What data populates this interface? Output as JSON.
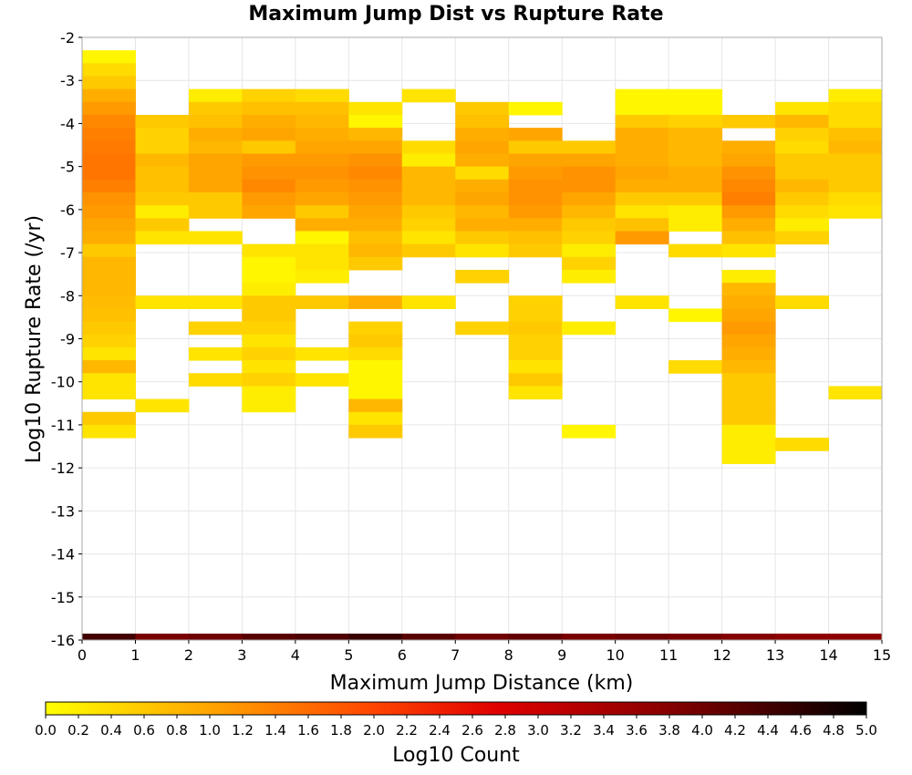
{
  "chart_data": {
    "type": "heatmap",
    "title": "Maximum Jump Dist vs Rupture Rate",
    "xlabel": "Maximum Jump Distance (km)",
    "ylabel": "Log10 Rupture Rate (/yr)",
    "xlim": [
      0,
      15
    ],
    "ylim": [
      -16,
      -2
    ],
    "x_ticks": [
      "0",
      "1",
      "2",
      "3",
      "4",
      "5",
      "6",
      "7",
      "8",
      "9",
      "10",
      "11",
      "12",
      "13",
      "14",
      "15"
    ],
    "y_ticks": [
      "-2",
      "-3",
      "-4",
      "-5",
      "-6",
      "-7",
      "-8",
      "-9",
      "-10",
      "-11",
      "-12",
      "-13",
      "-14",
      "-15",
      "-16"
    ],
    "bin_width_x": 1,
    "bin_height_y": 0.3,
    "colorbar": {
      "label": "Log10 Count",
      "min": 0.0,
      "max": 5.0,
      "ticks": [
        "0.0",
        "0.2",
        "0.4",
        "0.6",
        "0.8",
        "1.0",
        "1.2",
        "1.4",
        "1.6",
        "1.8",
        "2.0",
        "2.2",
        "2.4",
        "2.6",
        "2.8",
        "3.0",
        "3.2",
        "3.4",
        "3.6",
        "3.8",
        "4.0",
        "4.2",
        "4.4",
        "4.6",
        "4.8",
        "5.0"
      ],
      "colors": [
        "#ffff00",
        "#ffa500",
        "#ff4500",
        "#e00000",
        "#8b0000",
        "#000000"
      ]
    },
    "grid": true,
    "cells": [
      [
        0,
        -2.45,
        0.1
      ],
      [
        0,
        -2.75,
        0.4
      ],
      [
        0,
        -3.05,
        0.6
      ],
      [
        0,
        -3.35,
        0.9
      ],
      [
        0,
        -3.65,
        1.1
      ],
      [
        0,
        -3.95,
        1.3
      ],
      [
        0,
        -4.25,
        1.4
      ],
      [
        0,
        -4.55,
        1.45
      ],
      [
        0,
        -4.85,
        1.5
      ],
      [
        0,
        -5.15,
        1.5
      ],
      [
        0,
        -5.45,
        1.4
      ],
      [
        0,
        -5.75,
        1.2
      ],
      [
        0,
        -6.05,
        1.1
      ],
      [
        0,
        -6.35,
        1.0
      ],
      [
        0,
        -6.65,
        0.9
      ],
      [
        0,
        -6.95,
        0.6
      ],
      [
        0,
        -7.25,
        0.8
      ],
      [
        0,
        -7.55,
        0.8
      ],
      [
        0,
        -7.85,
        0.8
      ],
      [
        0,
        -8.15,
        0.75
      ],
      [
        0,
        -8.45,
        0.7
      ],
      [
        0,
        -8.75,
        0.6
      ],
      [
        0,
        -9.05,
        0.5
      ],
      [
        0,
        -9.35,
        0.3
      ],
      [
        0,
        -9.65,
        0.8
      ],
      [
        0,
        -9.95,
        0.3
      ],
      [
        0,
        -10.25,
        0.3
      ],
      [
        0,
        -10.85,
        0.6
      ],
      [
        0,
        -11.15,
        0.3
      ],
      [
        0,
        -16.0,
        4.4
      ],
      [
        1,
        -16.0,
        3.9
      ],
      [
        2,
        -16.0,
        4.0
      ],
      [
        3,
        -16.0,
        4.2
      ],
      [
        4,
        -16.0,
        4.3
      ],
      [
        5,
        -16.0,
        4.5
      ],
      [
        6,
        -16.0,
        4.2
      ],
      [
        7,
        -16.0,
        4.0
      ],
      [
        8,
        -16.0,
        4.1
      ],
      [
        9,
        -16.0,
        3.9
      ],
      [
        10,
        -16.0,
        4.0
      ],
      [
        11,
        -16.0,
        3.9
      ],
      [
        12,
        -16.0,
        3.8
      ],
      [
        13,
        -16.0,
        3.7
      ],
      [
        14,
        -16.0,
        3.7
      ],
      [
        1,
        -3.95,
        0.6
      ],
      [
        1,
        -4.25,
        0.5
      ],
      [
        1,
        -4.55,
        0.5
      ],
      [
        1,
        -4.85,
        0.8
      ],
      [
        1,
        -5.15,
        0.7
      ],
      [
        1,
        -5.45,
        0.7
      ],
      [
        1,
        -5.75,
        0.6
      ],
      [
        1,
        -6.05,
        0.2
      ],
      [
        1,
        -6.35,
        0.6
      ],
      [
        1,
        -6.65,
        0.3
      ],
      [
        1,
        -8.15,
        0.3
      ],
      [
        1,
        -10.55,
        0.3
      ],
      [
        2,
        -3.35,
        0.2
      ],
      [
        2,
        -3.65,
        0.6
      ],
      [
        2,
        -3.95,
        0.7
      ],
      [
        2,
        -4.25,
        0.9
      ],
      [
        2,
        -4.55,
        0.8
      ],
      [
        2,
        -4.85,
        1.0
      ],
      [
        2,
        -5.15,
        1.0
      ],
      [
        2,
        -5.45,
        1.0
      ],
      [
        2,
        -5.75,
        0.6
      ],
      [
        2,
        -6.05,
        0.6
      ],
      [
        2,
        -6.65,
        0.3
      ],
      [
        2,
        -8.15,
        0.3
      ],
      [
        2,
        -8.75,
        0.5
      ],
      [
        2,
        -9.35,
        0.3
      ],
      [
        2,
        -9.95,
        0.4
      ],
      [
        3,
        -3.35,
        0.5
      ],
      [
        3,
        -3.65,
        0.7
      ],
      [
        3,
        -3.95,
        0.9
      ],
      [
        3,
        -4.25,
        1.0
      ],
      [
        3,
        -4.55,
        0.6
      ],
      [
        3,
        -4.85,
        1.1
      ],
      [
        3,
        -5.15,
        1.2
      ],
      [
        3,
        -5.45,
        1.3
      ],
      [
        3,
        -5.75,
        1.1
      ],
      [
        3,
        -6.05,
        1.0
      ],
      [
        3,
        -6.95,
        0.3
      ],
      [
        3,
        -7.25,
        0.1
      ],
      [
        3,
        -7.55,
        0.1
      ],
      [
        3,
        -7.85,
        0.2
      ],
      [
        3,
        -8.15,
        0.6
      ],
      [
        3,
        -8.45,
        0.6
      ],
      [
        3,
        -8.75,
        0.5
      ],
      [
        3,
        -9.05,
        0.3
      ],
      [
        3,
        -9.35,
        0.5
      ],
      [
        3,
        -9.65,
        0.3
      ],
      [
        3,
        -9.95,
        0.5
      ],
      [
        3,
        -10.25,
        0.2
      ],
      [
        3,
        -10.55,
        0.2
      ],
      [
        4,
        -3.35,
        0.4
      ],
      [
        4,
        -3.65,
        0.7
      ],
      [
        4,
        -3.95,
        0.8
      ],
      [
        4,
        -4.25,
        0.9
      ],
      [
        4,
        -4.55,
        1.0
      ],
      [
        4,
        -4.85,
        1.1
      ],
      [
        4,
        -5.15,
        1.2
      ],
      [
        4,
        -5.45,
        1.1
      ],
      [
        4,
        -5.75,
        1.0
      ],
      [
        4,
        -6.05,
        0.6
      ],
      [
        4,
        -6.35,
        0.9
      ],
      [
        4,
        -6.65,
        0.1
      ],
      [
        4,
        -6.95,
        0.3
      ],
      [
        4,
        -7.25,
        0.3
      ],
      [
        4,
        -7.55,
        0.2
      ],
      [
        4,
        -8.15,
        0.6
      ],
      [
        4,
        -9.35,
        0.3
      ],
      [
        4,
        -9.95,
        0.3
      ],
      [
        5,
        -3.65,
        0.3
      ],
      [
        5,
        -3.95,
        0.1
      ],
      [
        5,
        -4.25,
        0.8
      ],
      [
        5,
        -4.55,
        1.0
      ],
      [
        5,
        -4.85,
        1.2
      ],
      [
        5,
        -5.15,
        1.3
      ],
      [
        5,
        -5.45,
        1.2
      ],
      [
        5,
        -5.75,
        1.1
      ],
      [
        5,
        -6.05,
        1.0
      ],
      [
        5,
        -6.35,
        0.9
      ],
      [
        5,
        -6.65,
        0.7
      ],
      [
        5,
        -6.95,
        0.8
      ],
      [
        5,
        -7.25,
        0.6
      ],
      [
        5,
        -8.15,
        0.9
      ],
      [
        5,
        -8.75,
        0.5
      ],
      [
        5,
        -9.05,
        0.6
      ],
      [
        5,
        -9.35,
        0.4
      ],
      [
        5,
        -9.65,
        0.1
      ],
      [
        5,
        -9.95,
        0.1
      ],
      [
        5,
        -10.25,
        0.1
      ],
      [
        5,
        -10.55,
        0.8
      ],
      [
        5,
        -10.85,
        0.3
      ],
      [
        5,
        -11.15,
        0.6
      ],
      [
        6,
        -3.35,
        0.3
      ],
      [
        6,
        -4.55,
        0.4
      ],
      [
        6,
        -4.85,
        0.2
      ],
      [
        6,
        -5.15,
        0.8
      ],
      [
        6,
        -5.45,
        0.8
      ],
      [
        6,
        -5.75,
        0.8
      ],
      [
        6,
        -6.05,
        0.6
      ],
      [
        6,
        -6.35,
        0.5
      ],
      [
        6,
        -6.65,
        0.3
      ],
      [
        6,
        -6.95,
        0.6
      ],
      [
        6,
        -8.15,
        0.3
      ],
      [
        7,
        -3.65,
        0.6
      ],
      [
        7,
        -3.95,
        0.7
      ],
      [
        7,
        -4.25,
        0.9
      ],
      [
        7,
        -4.55,
        1.0
      ],
      [
        7,
        -4.85,
        0.9
      ],
      [
        7,
        -5.15,
        0.4
      ],
      [
        7,
        -5.45,
        0.9
      ],
      [
        7,
        -5.75,
        1.0
      ],
      [
        7,
        -6.05,
        0.8
      ],
      [
        7,
        -6.35,
        0.9
      ],
      [
        7,
        -6.65,
        0.6
      ],
      [
        7,
        -6.95,
        0.3
      ],
      [
        7,
        -7.55,
        0.5
      ],
      [
        7,
        -8.75,
        0.5
      ],
      [
        8,
        -3.65,
        0.1
      ],
      [
        8,
        -4.25,
        1.0
      ],
      [
        8,
        -4.55,
        0.6
      ],
      [
        8,
        -4.85,
        1.0
      ],
      [
        8,
        -5.15,
        1.1
      ],
      [
        8,
        -5.45,
        1.2
      ],
      [
        8,
        -5.75,
        1.2
      ],
      [
        8,
        -6.05,
        1.1
      ],
      [
        8,
        -6.35,
        0.9
      ],
      [
        8,
        -6.65,
        0.7
      ],
      [
        8,
        -6.95,
        0.6
      ],
      [
        8,
        -8.15,
        0.5
      ],
      [
        8,
        -8.45,
        0.5
      ],
      [
        8,
        -8.75,
        0.6
      ],
      [
        8,
        -9.05,
        0.5
      ],
      [
        8,
        -9.35,
        0.5
      ],
      [
        8,
        -9.65,
        0.3
      ],
      [
        8,
        -9.95,
        0.6
      ],
      [
        8,
        -10.25,
        0.3
      ],
      [
        9,
        -4.55,
        0.6
      ],
      [
        9,
        -4.85,
        1.0
      ],
      [
        9,
        -5.15,
        1.2
      ],
      [
        9,
        -5.45,
        1.2
      ],
      [
        9,
        -5.75,
        1.0
      ],
      [
        9,
        -6.05,
        0.8
      ],
      [
        9,
        -6.35,
        0.6
      ],
      [
        9,
        -6.65,
        0.5
      ],
      [
        9,
        -6.95,
        0.2
      ],
      [
        9,
        -7.25,
        0.5
      ],
      [
        9,
        -7.55,
        0.2
      ],
      [
        9,
        -8.75,
        0.2
      ],
      [
        9,
        -11.15,
        0.1
      ],
      [
        10,
        -3.35,
        0.1
      ],
      [
        10,
        -3.65,
        0.1
      ],
      [
        10,
        -3.95,
        0.6
      ],
      [
        10,
        -4.25,
        0.9
      ],
      [
        10,
        -4.55,
        0.9
      ],
      [
        10,
        -4.85,
        0.9
      ],
      [
        10,
        -5.15,
        1.0
      ],
      [
        10,
        -5.45,
        0.9
      ],
      [
        10,
        -5.75,
        0.6
      ],
      [
        10,
        -6.05,
        0.3
      ],
      [
        10,
        -6.35,
        0.7
      ],
      [
        10,
        -6.65,
        1.1
      ],
      [
        10,
        -8.15,
        0.3
      ],
      [
        11,
        -3.35,
        0.1
      ],
      [
        11,
        -3.65,
        0.1
      ],
      [
        11,
        -3.95,
        0.5
      ],
      [
        11,
        -4.25,
        0.8
      ],
      [
        11,
        -4.55,
        0.8
      ],
      [
        11,
        -4.85,
        0.8
      ],
      [
        11,
        -5.15,
        0.9
      ],
      [
        11,
        -5.45,
        0.9
      ],
      [
        11,
        -5.75,
        0.6
      ],
      [
        11,
        -6.05,
        0.2
      ],
      [
        11,
        -6.35,
        0.2
      ],
      [
        11,
        -6.95,
        0.4
      ],
      [
        11,
        -8.45,
        0.1
      ],
      [
        11,
        -9.65,
        0.4
      ],
      [
        12,
        -3.95,
        0.6
      ],
      [
        12,
        -4.55,
        0.9
      ],
      [
        12,
        -4.85,
        1.0
      ],
      [
        12,
        -5.15,
        1.2
      ],
      [
        12,
        -5.45,
        1.3
      ],
      [
        12,
        -5.75,
        1.4
      ],
      [
        12,
        -6.05,
        1.1
      ],
      [
        12,
        -6.35,
        0.9
      ],
      [
        12,
        -6.65,
        0.7
      ],
      [
        12,
        -6.95,
        0.3
      ],
      [
        12,
        -7.55,
        0.2
      ],
      [
        12,
        -7.85,
        0.8
      ],
      [
        12,
        -8.15,
        0.9
      ],
      [
        12,
        -8.45,
        1.0
      ],
      [
        12,
        -8.75,
        1.1
      ],
      [
        12,
        -9.05,
        1.0
      ],
      [
        12,
        -9.35,
        0.9
      ],
      [
        12,
        -9.65,
        0.8
      ],
      [
        12,
        -9.95,
        0.6
      ],
      [
        12,
        -10.25,
        0.6
      ],
      [
        12,
        -10.55,
        0.6
      ],
      [
        12,
        -10.85,
        0.6
      ],
      [
        12,
        -11.15,
        0.2
      ],
      [
        12,
        -11.45,
        0.2
      ],
      [
        12,
        -11.75,
        0.2
      ],
      [
        13,
        -3.65,
        0.3
      ],
      [
        13,
        -3.95,
        0.8
      ],
      [
        13,
        -4.25,
        0.5
      ],
      [
        13,
        -4.55,
        0.4
      ],
      [
        13,
        -4.85,
        0.6
      ],
      [
        13,
        -5.15,
        0.6
      ],
      [
        13,
        -5.45,
        0.8
      ],
      [
        13,
        -5.75,
        0.6
      ],
      [
        13,
        -6.05,
        0.4
      ],
      [
        13,
        -6.35,
        0.2
      ],
      [
        13,
        -6.65,
        0.5
      ],
      [
        13,
        -8.15,
        0.4
      ],
      [
        13,
        -11.45,
        0.4
      ],
      [
        14,
        -3.35,
        0.2
      ],
      [
        14,
        -3.65,
        0.4
      ],
      [
        14,
        -3.95,
        0.4
      ],
      [
        14,
        -4.25,
        0.7
      ],
      [
        14,
        -4.55,
        0.8
      ],
      [
        14,
        -4.85,
        0.6
      ],
      [
        14,
        -5.15,
        0.6
      ],
      [
        14,
        -5.45,
        0.6
      ],
      [
        14,
        -5.75,
        0.4
      ],
      [
        14,
        -6.05,
        0.3
      ],
      [
        14,
        -10.25,
        0.3
      ]
    ]
  }
}
